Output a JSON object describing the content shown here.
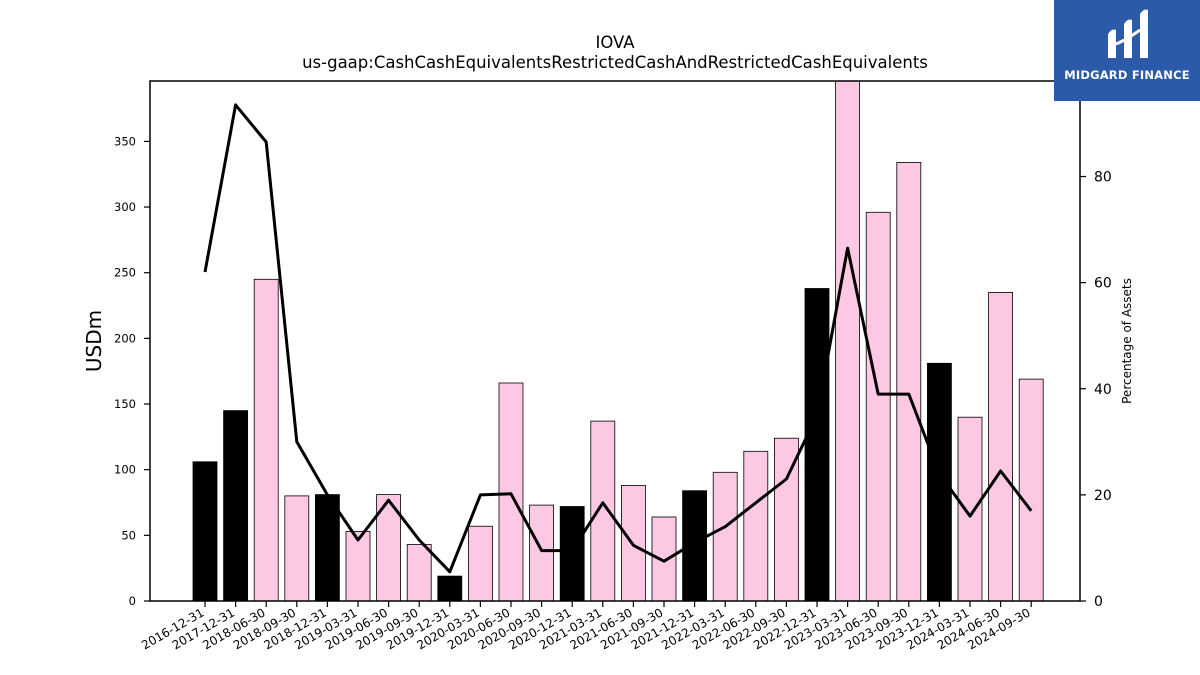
{
  "logo": {
    "text": "MIDGARD FINANCE",
    "icon": "midgard-logo-icon",
    "background": "#2b5aa8"
  },
  "chart_data": {
    "type": "bar",
    "title": "IOVA",
    "subtitle": "us-gaap:CashCashEquivalentsRestrictedCashAndRestrictedCashEquivalents",
    "ylabel": "USDm",
    "y2label": "Percentage of Assets",
    "ylim": [
      0,
      396
    ],
    "y2lim": [
      0,
      98
    ],
    "yticks": [
      0,
      50,
      100,
      150,
      200,
      250,
      300,
      350
    ],
    "y2ticks": [
      0,
      20,
      40,
      60,
      80
    ],
    "grid": false,
    "legend": "none",
    "colors": {
      "annual": "#000000",
      "quarterly": "#fcc8e3",
      "line": "#000000"
    },
    "categories": [
      "2016-12-31",
      "2017-12-31",
      "2018-06-30",
      "2018-09-30",
      "2018-12-31",
      "2019-03-31",
      "2019-06-30",
      "2019-09-30",
      "2019-12-31",
      "2020-03-31",
      "2020-06-30",
      "2020-09-30",
      "2020-12-31",
      "2021-03-31",
      "2021-06-30",
      "2021-09-30",
      "2021-12-31",
      "2022-03-31",
      "2022-06-30",
      "2022-09-30",
      "2022-12-31",
      "2023-03-31",
      "2023-06-30",
      "2023-09-30",
      "2023-12-31",
      "2024-03-31",
      "2024-06-30",
      "2024-09-30"
    ],
    "series": [
      {
        "type": "bar",
        "values": [
          106,
          145,
          245,
          80,
          81,
          53,
          81,
          43,
          19,
          57,
          166,
          73,
          72,
          137,
          88,
          64,
          84,
          98,
          114,
          124,
          238,
          398,
          296,
          334,
          181,
          140,
          235,
          169
        ],
        "annual": [
          true,
          true,
          false,
          false,
          true,
          false,
          false,
          false,
          true,
          false,
          false,
          false,
          true,
          false,
          false,
          false,
          true,
          false,
          false,
          false,
          true,
          false,
          false,
          false,
          true,
          false,
          false,
          false
        ]
      },
      {
        "type": "line",
        "axis": "right",
        "values": [
          62,
          93.5,
          86.5,
          30,
          20,
          11.5,
          19,
          11.5,
          5.5,
          20,
          20.2,
          9.5,
          9.5,
          18.5,
          10.5,
          7.5,
          11,
          14,
          18.5,
          23,
          35,
          66.5,
          39,
          39,
          24,
          16,
          24.5,
          17
        ]
      }
    ]
  }
}
